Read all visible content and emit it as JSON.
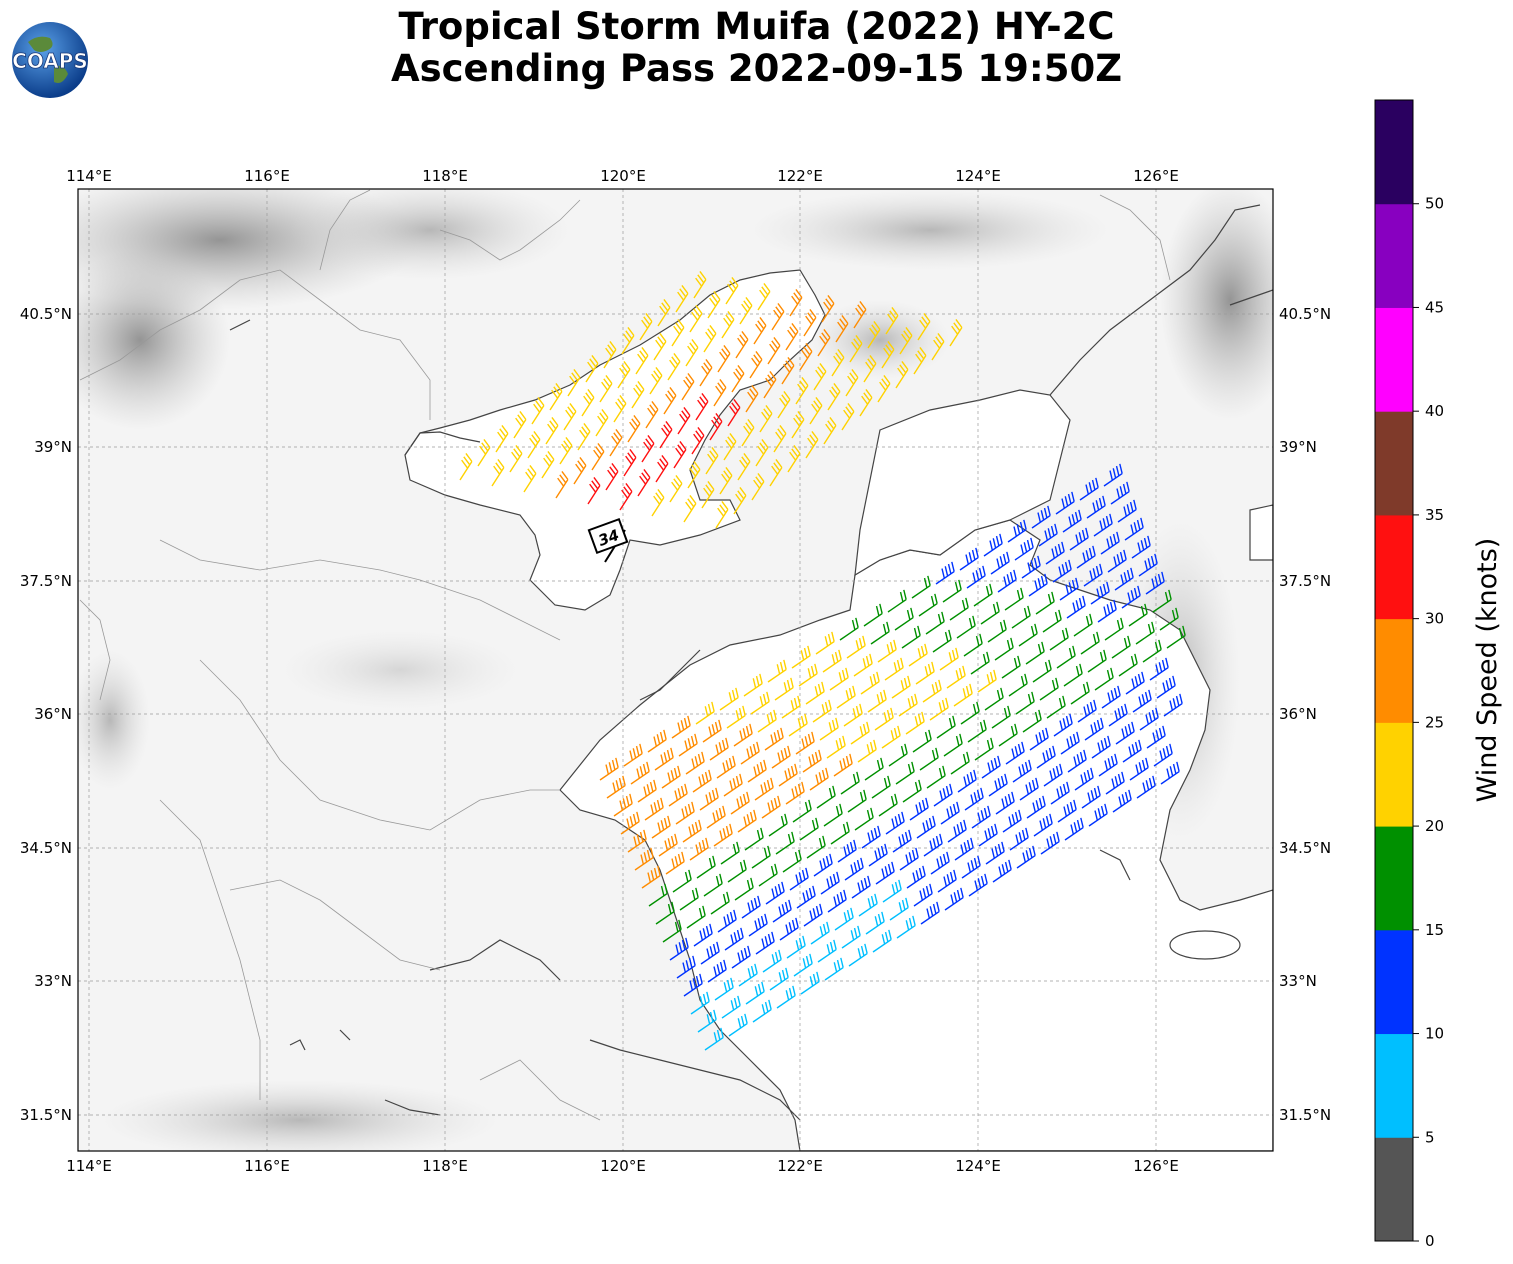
{
  "title": {
    "line1": "Tropical Storm Muifa (2022) HY-2C",
    "line2": "Ascending Pass 2022-09-15 19:50Z"
  },
  "logo": {
    "text": "COAPS",
    "icon": "globe-icon"
  },
  "map": {
    "lon_ticks": [
      "114°E",
      "116°E",
      "118°E",
      "120°E",
      "122°E",
      "124°E",
      "126°E"
    ],
    "lat_ticks": [
      "40.5°N",
      "39°N",
      "37.5°N",
      "36°N",
      "34.5°N",
      "33°N",
      "31.5°N"
    ],
    "storm_marker_label": "34",
    "background": "grayscale terrain",
    "grid": true
  },
  "colorbar": {
    "label": "Wind Speed (knots)",
    "ticks": [
      "0",
      "5",
      "10",
      "15",
      "20",
      "25",
      "30",
      "35",
      "40",
      "45",
      "50"
    ],
    "colors": [
      "#555555",
      "#00bfff",
      "#0033ff",
      "#009000",
      "#ffd200",
      "#ff8c00",
      "#ff1010",
      "#7f3a2a",
      "#ff00ff",
      "#8800c0",
      "#2a0060"
    ]
  }
}
